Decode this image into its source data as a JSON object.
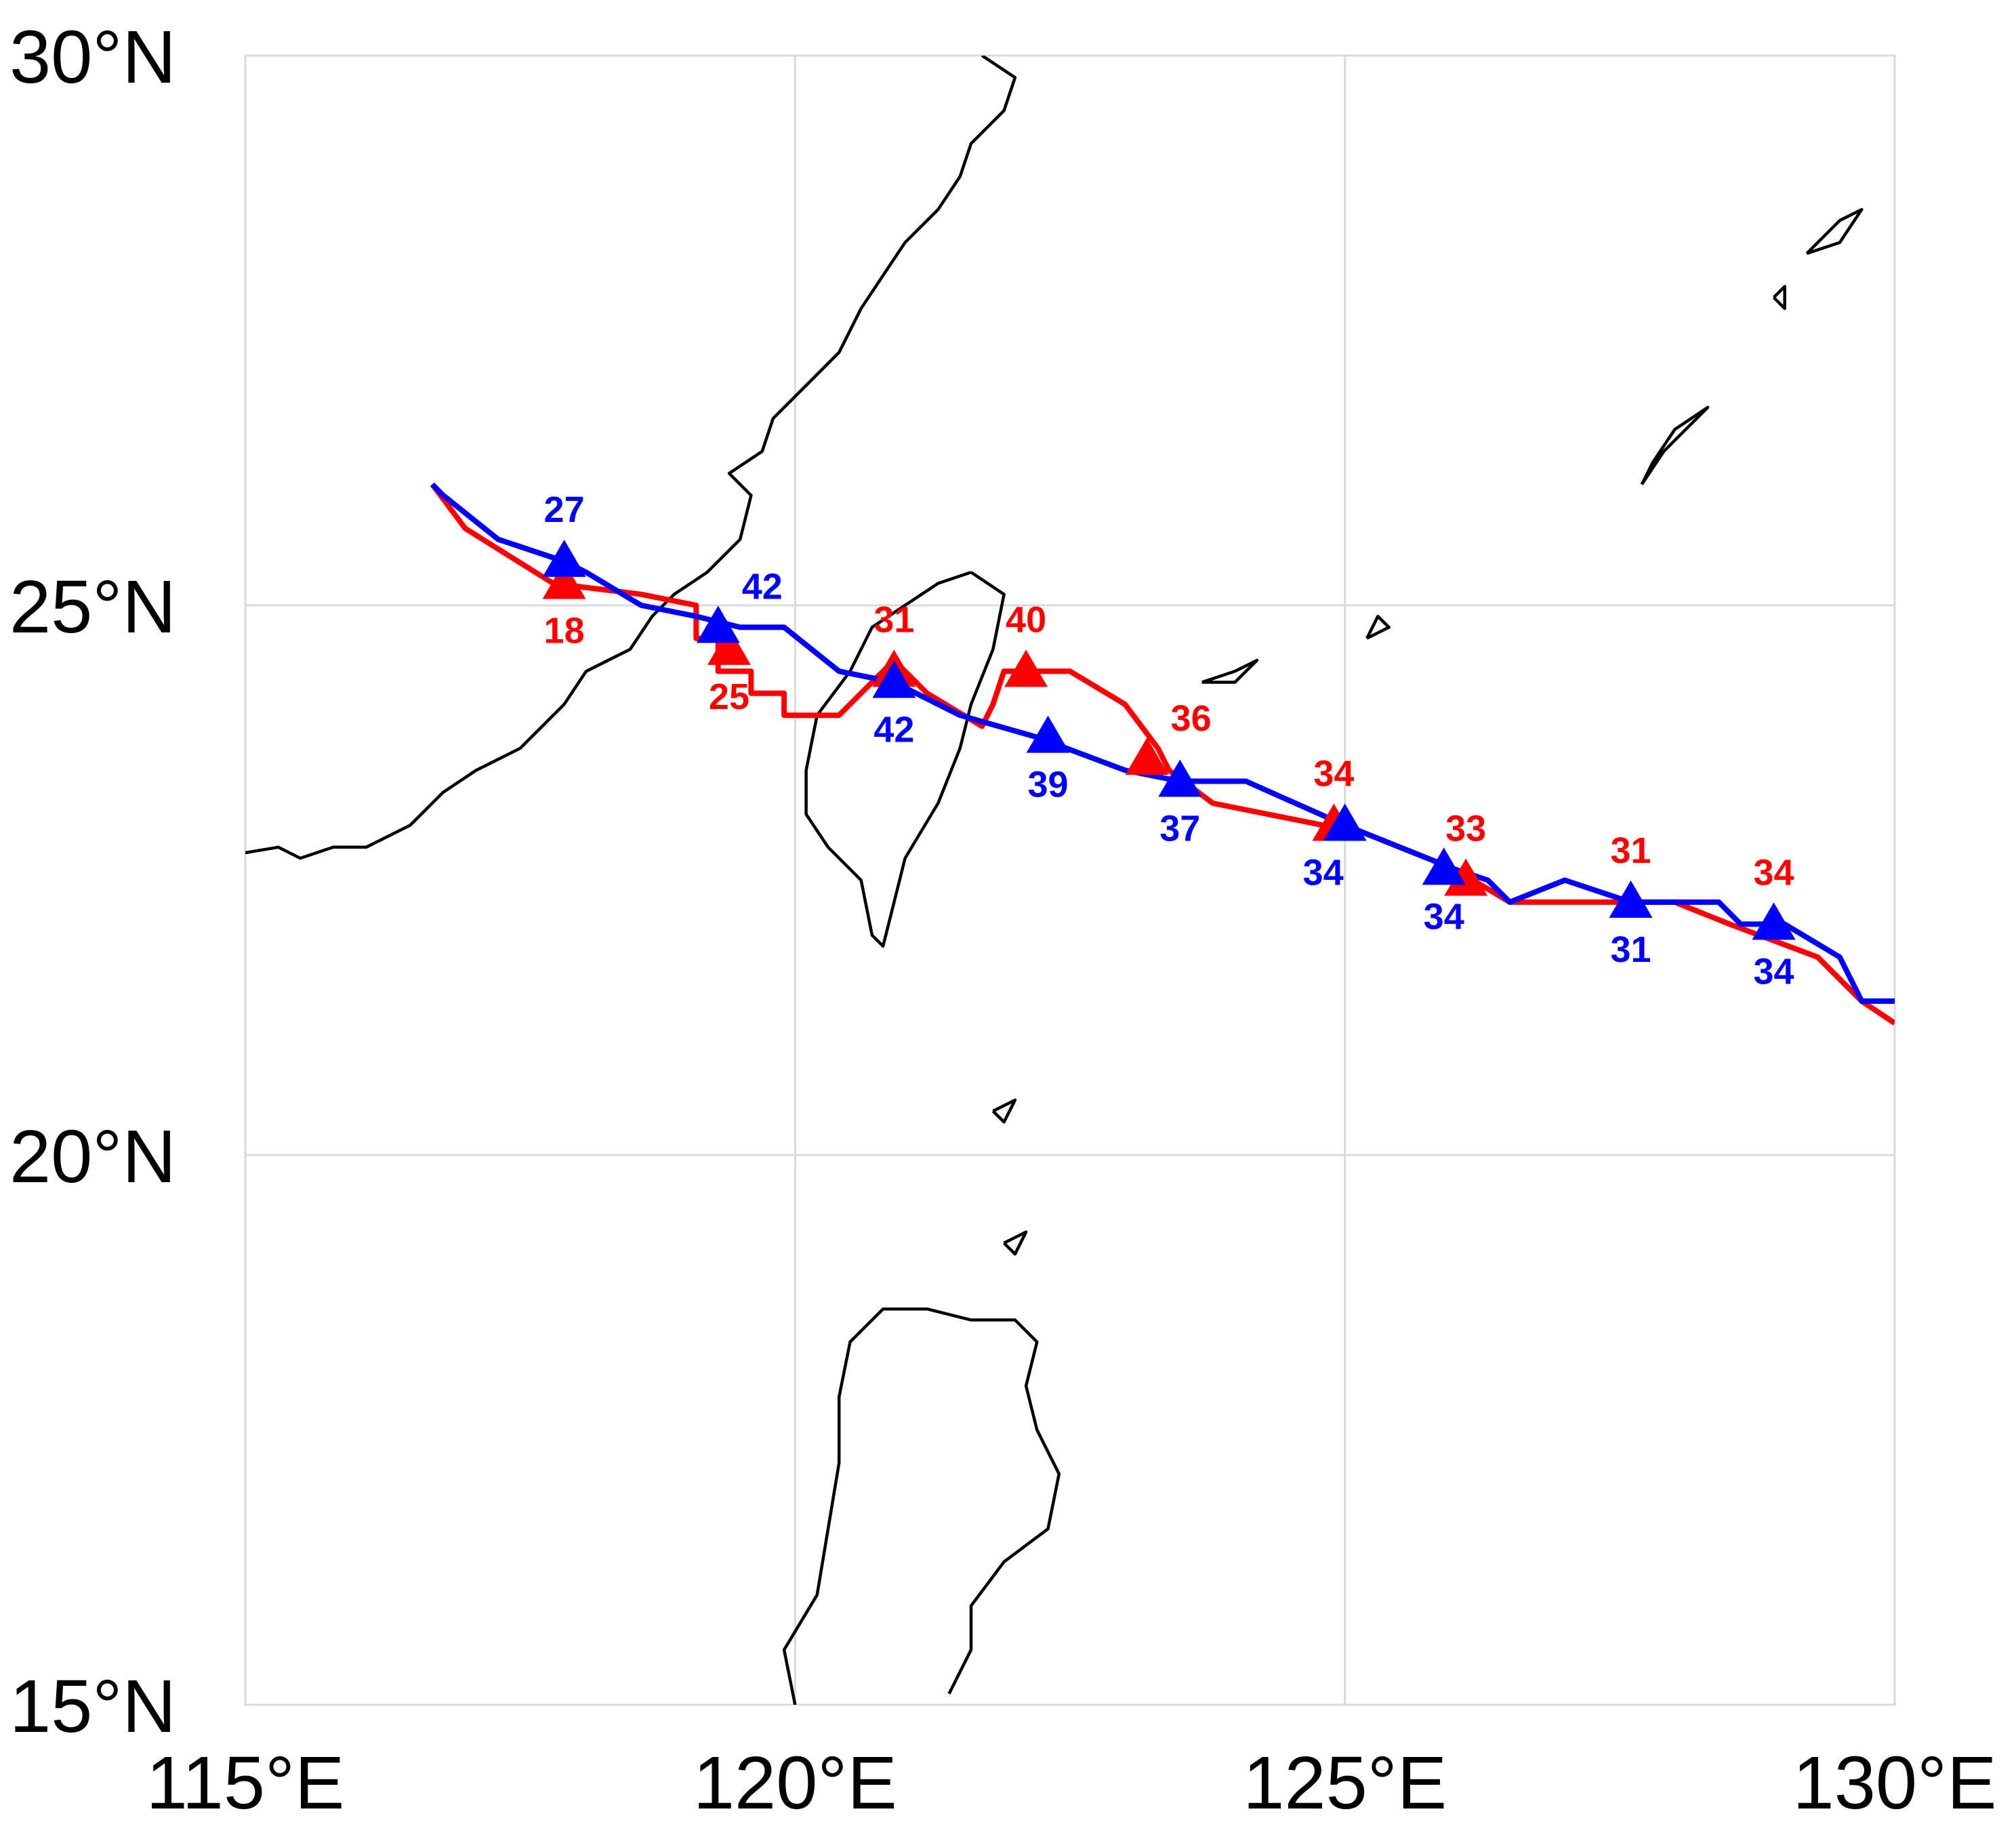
{
  "chart_data": {
    "type": "map-track",
    "projection": "equirectangular",
    "xlim": [
      115,
      130
    ],
    "ylim": [
      15,
      30
    ],
    "x_ticks": [
      {
        "value": 115,
        "label": "115°E"
      },
      {
        "value": 120,
        "label": "120°E"
      },
      {
        "value": 125,
        "label": "125°E"
      },
      {
        "value": 130,
        "label": "130°E"
      }
    ],
    "y_ticks": [
      {
        "value": 30,
        "label": "30°N"
      },
      {
        "value": 25,
        "label": "25°N"
      },
      {
        "value": 20,
        "label": "20°N"
      },
      {
        "value": 15,
        "label": "15°N"
      }
    ],
    "grid": true,
    "series": [
      {
        "color": "#ff0000",
        "track": [
          [
            130.0,
            21.2
          ],
          [
            129.7,
            21.4
          ],
          [
            129.3,
            21.8
          ],
          [
            128.5,
            22.1
          ],
          [
            128.0,
            22.3
          ],
          [
            127.0,
            22.3
          ],
          [
            126.5,
            22.3
          ],
          [
            126.0,
            22.6
          ],
          [
            125.0,
            23.0
          ],
          [
            124.8,
            23.0
          ],
          [
            123.8,
            23.2
          ],
          [
            123.4,
            23.5
          ],
          [
            123.3,
            23.7
          ],
          [
            123.0,
            24.1
          ],
          [
            122.5,
            24.4
          ],
          [
            121.9,
            24.4
          ],
          [
            121.8,
            24.1
          ],
          [
            121.7,
            23.9
          ],
          [
            121.2,
            24.2
          ],
          [
            120.9,
            24.5
          ],
          [
            120.7,
            24.3
          ],
          [
            120.4,
            24.0
          ],
          [
            119.9,
            24.0
          ],
          [
            119.9,
            24.2
          ],
          [
            119.6,
            24.2
          ],
          [
            119.6,
            24.4
          ],
          [
            119.3,
            24.4
          ],
          [
            119.3,
            24.7
          ],
          [
            119.1,
            24.7
          ],
          [
            119.1,
            25.0
          ],
          [
            118.6,
            25.1
          ],
          [
            117.8,
            25.2
          ],
          [
            117.0,
            25.7
          ],
          [
            116.7,
            26.1
          ]
        ],
        "points": [
          {
            "lon": 117.9,
            "lat": 25.2,
            "label": "18",
            "label_pos": "below"
          },
          {
            "lon": 119.4,
            "lat": 24.6,
            "label": "25",
            "label_pos": "below"
          },
          {
            "lon": 120.9,
            "lat": 24.4,
            "label": "31",
            "label_pos": "above"
          },
          {
            "lon": 122.1,
            "lat": 24.4,
            "label": "40",
            "label_pos": "above"
          },
          {
            "lon": 123.2,
            "lat": 23.6,
            "label": "36",
            "label_pos": "above-right"
          },
          {
            "lon": 124.9,
            "lat": 23.0,
            "label": "34",
            "label_pos": "above"
          },
          {
            "lon": 126.1,
            "lat": 22.5,
            "label": "33",
            "label_pos": "above"
          },
          {
            "lon": 127.6,
            "lat": 22.3,
            "label": "31",
            "label_pos": "above"
          },
          {
            "lon": 128.9,
            "lat": 22.1,
            "label": "34",
            "label_pos": "above"
          }
        ]
      },
      {
        "color": "#0000ff",
        "track": [
          [
            130.0,
            21.4
          ],
          [
            129.7,
            21.4
          ],
          [
            129.5,
            21.8
          ],
          [
            129.0,
            22.1
          ],
          [
            128.8,
            22.1
          ],
          [
            128.6,
            22.1
          ],
          [
            128.4,
            22.3
          ],
          [
            128.0,
            22.3
          ],
          [
            127.6,
            22.3
          ],
          [
            127.0,
            22.5
          ],
          [
            126.5,
            22.3
          ],
          [
            126.3,
            22.5
          ],
          [
            126.0,
            22.6
          ],
          [
            125.0,
            23.0
          ],
          [
            124.1,
            23.4
          ],
          [
            123.8,
            23.4
          ],
          [
            123.5,
            23.4
          ],
          [
            123.0,
            23.5
          ],
          [
            122.2,
            23.8
          ],
          [
            121.5,
            24.0
          ],
          [
            120.9,
            24.3
          ],
          [
            120.4,
            24.4
          ],
          [
            119.9,
            24.8
          ],
          [
            119.5,
            24.8
          ],
          [
            119.1,
            24.9
          ],
          [
            118.6,
            25.0
          ],
          [
            118.1,
            25.3
          ],
          [
            117.9,
            25.4
          ],
          [
            117.3,
            25.6
          ],
          [
            116.8,
            26.0
          ],
          [
            116.7,
            26.1
          ]
        ],
        "points": [
          {
            "lon": 117.9,
            "lat": 25.4,
            "label": "27",
            "label_pos": "above"
          },
          {
            "lon": 119.3,
            "lat": 24.8,
            "label": "42",
            "label_pos": "above-right"
          },
          {
            "lon": 120.9,
            "lat": 24.3,
            "label": "42",
            "label_pos": "below"
          },
          {
            "lon": 122.3,
            "lat": 23.8,
            "label": "39",
            "label_pos": "below"
          },
          {
            "lon": 123.5,
            "lat": 23.4,
            "label": "37",
            "label_pos": "below"
          },
          {
            "lon": 125.0,
            "lat": 23.0,
            "label": "34",
            "label_pos": "below-left"
          },
          {
            "lon": 125.9,
            "lat": 22.6,
            "label": "34",
            "label_pos": "below"
          },
          {
            "lon": 127.6,
            "lat": 22.3,
            "label": "31",
            "label_pos": "below"
          },
          {
            "lon": 128.9,
            "lat": 22.1,
            "label": "34",
            "label_pos": "below"
          }
        ]
      }
    ]
  },
  "coastlines": [
    {
      "name": "mainland-china",
      "points": [
        [
          115.0,
          22.75
        ],
        [
          115.3,
          22.8
        ],
        [
          115.5,
          22.7
        ],
        [
          115.8,
          22.8
        ],
        [
          116.1,
          22.8
        ],
        [
          116.5,
          23.0
        ],
        [
          116.8,
          23.3
        ],
        [
          117.1,
          23.5
        ],
        [
          117.5,
          23.7
        ],
        [
          117.9,
          24.1
        ],
        [
          118.1,
          24.4
        ],
        [
          118.5,
          24.6
        ],
        [
          118.7,
          24.9
        ],
        [
          118.9,
          25.1
        ],
        [
          119.2,
          25.3
        ],
        [
          119.5,
          25.6
        ],
        [
          119.6,
          26.0
        ],
        [
          119.4,
          26.2
        ],
        [
          119.7,
          26.4
        ],
        [
          119.8,
          26.7
        ],
        [
          120.1,
          27.0
        ],
        [
          120.4,
          27.3
        ],
        [
          120.6,
          27.7
        ],
        [
          120.8,
          28.0
        ],
        [
          121.0,
          28.3
        ],
        [
          121.3,
          28.6
        ],
        [
          121.5,
          28.9
        ],
        [
          121.6,
          29.2
        ],
        [
          121.9,
          29.5
        ],
        [
          122.0,
          29.8
        ],
        [
          121.7,
          30.0
        ]
      ]
    },
    {
      "name": "taiwan",
      "points": [
        [
          121.6,
          25.3
        ],
        [
          121.9,
          25.1
        ],
        [
          121.8,
          24.6
        ],
        [
          121.6,
          24.1
        ],
        [
          121.5,
          23.7
        ],
        [
          121.3,
          23.2
        ],
        [
          121.0,
          22.7
        ],
        [
          120.9,
          22.3
        ],
        [
          120.8,
          21.9
        ],
        [
          120.7,
          22.0
        ],
        [
          120.6,
          22.5
        ],
        [
          120.3,
          22.8
        ],
        [
          120.1,
          23.1
        ],
        [
          120.1,
          23.5
        ],
        [
          120.2,
          24.0
        ],
        [
          120.5,
          24.4
        ],
        [
          120.7,
          24.8
        ],
        [
          121.0,
          25.0
        ],
        [
          121.3,
          25.2
        ],
        [
          121.6,
          25.3
        ]
      ]
    },
    {
      "name": "luzon",
      "points": [
        [
          120.0,
          15.0
        ],
        [
          119.9,
          15.5
        ],
        [
          120.2,
          16.0
        ],
        [
          120.3,
          16.6
        ],
        [
          120.4,
          17.2
        ],
        [
          120.4,
          17.8
        ],
        [
          120.5,
          18.3
        ],
        [
          120.8,
          18.6
        ],
        [
          121.2,
          18.6
        ],
        [
          121.6,
          18.5
        ],
        [
          122.0,
          18.5
        ],
        [
          122.2,
          18.3
        ],
        [
          122.1,
          17.9
        ],
        [
          122.2,
          17.5
        ],
        [
          122.4,
          17.1
        ],
        [
          122.3,
          16.6
        ],
        [
          121.9,
          16.3
        ],
        [
          121.6,
          15.9
        ],
        [
          121.6,
          15.5
        ],
        [
          121.4,
          15.1
        ]
      ]
    },
    {
      "name": "okinawa",
      "points": [
        [
          127.7,
          26.1
        ],
        [
          127.9,
          26.4
        ],
        [
          128.2,
          26.7
        ],
        [
          128.3,
          26.8
        ],
        [
          128.0,
          26.6
        ],
        [
          127.8,
          26.3
        ],
        [
          127.7,
          26.1
        ]
      ]
    },
    {
      "name": "amami",
      "points": [
        [
          129.2,
          28.2
        ],
        [
          129.5,
          28.5
        ],
        [
          129.7,
          28.6
        ],
        [
          129.5,
          28.3
        ],
        [
          129.2,
          28.2
        ]
      ]
    },
    {
      "name": "yaeyama",
      "points": [
        [
          123.7,
          24.3
        ],
        [
          124.0,
          24.4
        ],
        [
          124.2,
          24.5
        ],
        [
          124.0,
          24.3
        ],
        [
          123.7,
          24.3
        ]
      ]
    },
    {
      "name": "miyako",
      "points": [
        [
          125.2,
          24.7
        ],
        [
          125.4,
          24.8
        ],
        [
          125.3,
          24.9
        ],
        [
          125.2,
          24.7
        ]
      ]
    },
    {
      "name": "batanes",
      "points": [
        [
          121.8,
          20.4
        ],
        [
          122.0,
          20.5
        ],
        [
          121.9,
          20.3
        ],
        [
          121.8,
          20.4
        ]
      ]
    },
    {
      "name": "babuyan",
      "points": [
        [
          121.9,
          19.2
        ],
        [
          122.1,
          19.3
        ],
        [
          122.0,
          19.1
        ],
        [
          121.9,
          19.2
        ]
      ]
    },
    {
      "name": "small-island-ne",
      "points": [
        [
          128.9,
          27.8
        ],
        [
          129.0,
          27.9
        ],
        [
          129.0,
          27.7
        ],
        [
          128.9,
          27.8
        ]
      ]
    }
  ]
}
